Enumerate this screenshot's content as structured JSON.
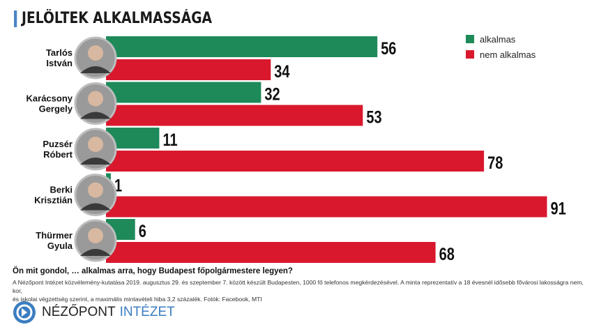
{
  "title": "JELÖLTEK ALKALMASSÁGA",
  "question": "Ön mit gondol, … alkalmas arra, hogy Budapest főpolgármestere legyen?",
  "note_line1": "A Nézőpont Intézet közvélemény-kutatása 2019. augusztus 29. és szeptember 7. között készült Budapesten, 1000 fő telefonos megkérdezésével. A minta reprezentatív a 18 évesnél idősebb fővárosi lakosságra nem, kor,",
  "note_line2": "és iskolai végzettség szerint, a maximális mintavételi hiba 3,2 százalék. Fotók: Facebook, MTI",
  "logo": {
    "part1": "NÉZŐPONT",
    "part2": "INTÉZET"
  },
  "chart_data": {
    "type": "bar",
    "orientation": "horizontal",
    "title": "JELÖLTEK ALKALMASSÁGA",
    "categories": [
      "Tarlós István",
      "Karácsony Gergely",
      "Puzsér Róbert",
      "Berki Krisztián",
      "Thürmer Gyula"
    ],
    "name_lines": [
      [
        "Tarlós",
        "István"
      ],
      [
        "Karácsony",
        "Gergely"
      ],
      [
        "Puzsér",
        "Róbert"
      ],
      [
        "Berki",
        "Krisztián"
      ],
      [
        "Thürmer",
        "Gyula"
      ]
    ],
    "series": [
      {
        "name": "alkalmas",
        "color": "#1e8a5a",
        "values": [
          56,
          32,
          11,
          1,
          6
        ]
      },
      {
        "name": "nem alkalmas",
        "color": "#d9182d",
        "values": [
          34,
          53,
          78,
          91,
          68
        ]
      }
    ],
    "xlim": [
      0,
      100
    ],
    "grid": false,
    "legend": "top-right",
    "data_labels": true
  }
}
